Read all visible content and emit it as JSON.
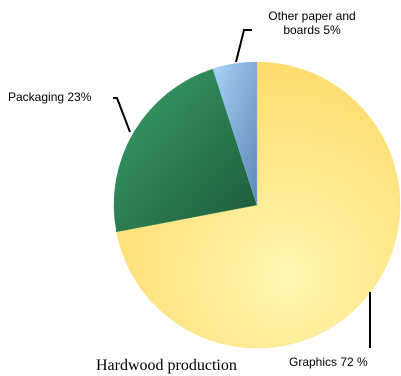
{
  "chart_data": {
    "type": "pie",
    "values": [
      72,
      23,
      5
    ],
    "value_labels": [
      "Graphics 72 %",
      "Packaging 23%",
      "Other paper and boards 5%"
    ],
    "colors": [
      "#ffe27a",
      "#2e8b57",
      "#8bbbe9"
    ],
    "subtitle": "Hardwood production"
  }
}
